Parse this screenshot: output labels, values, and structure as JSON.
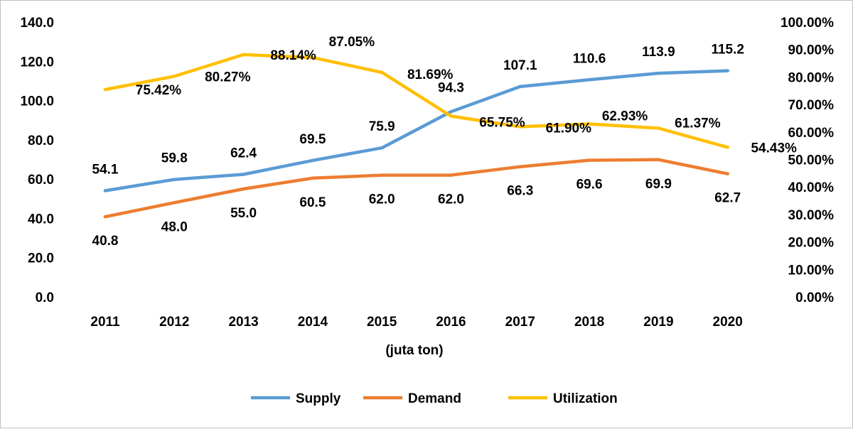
{
  "chart_data": {
    "type": "line",
    "title": "",
    "xlabel": "(juta ton)",
    "categories": [
      "2011",
      "2012",
      "2013",
      "2014",
      "2015",
      "2016",
      "2017",
      "2018",
      "2019",
      "2020"
    ],
    "y_left": {
      "min": 0,
      "max": 140,
      "step": 20,
      "tick_labels": [
        "0.0",
        "20.0",
        "40.0",
        "60.0",
        "80.0",
        "100.0",
        "120.0",
        "140.0"
      ]
    },
    "y_right": {
      "min": 0,
      "max": 100,
      "step": 10,
      "unit": "%",
      "tick_labels": [
        "0.00%",
        "10.00%",
        "20.00%",
        "30.00%",
        "40.00%",
        "50.00%",
        "60.00%",
        "70.00%",
        "80.00%",
        "90.00%",
        "100.00%"
      ]
    },
    "grid": false,
    "legend_position": "bottom",
    "series": [
      {
        "name": "Supply",
        "axis": "left",
        "color": "#5B9BD5",
        "values": [
          54.1,
          59.8,
          62.4,
          69.5,
          75.9,
          94.3,
          107.1,
          110.6,
          113.9,
          115.2
        ],
        "labels": [
          "54.1",
          "59.8",
          "62.4",
          "69.5",
          "75.9",
          "94.3",
          "107.1",
          "110.6",
          "113.9",
          "115.2"
        ]
      },
      {
        "name": "Demand",
        "axis": "left",
        "color": "#ED7D31",
        "values": [
          40.8,
          48.0,
          55.0,
          60.5,
          62.0,
          62.0,
          66.3,
          69.6,
          69.9,
          62.7
        ],
        "labels": [
          "40.8",
          "48.0",
          "55.0",
          "60.5",
          "62.0",
          "62.0",
          "66.3",
          "69.6",
          "69.9",
          "62.7"
        ]
      },
      {
        "name": "Utilization",
        "axis": "right",
        "color": "#FFC000",
        "values": [
          75.42,
          80.27,
          88.14,
          87.05,
          81.69,
          65.75,
          61.9,
          62.93,
          61.37,
          54.43
        ],
        "labels": [
          "75.42%",
          "80.27%",
          "88.14%",
          "87.05%",
          "81.69%",
          "65.75%",
          "61.90%",
          "62.93%",
          "61.37%",
          "54.43%"
        ]
      }
    ]
  }
}
